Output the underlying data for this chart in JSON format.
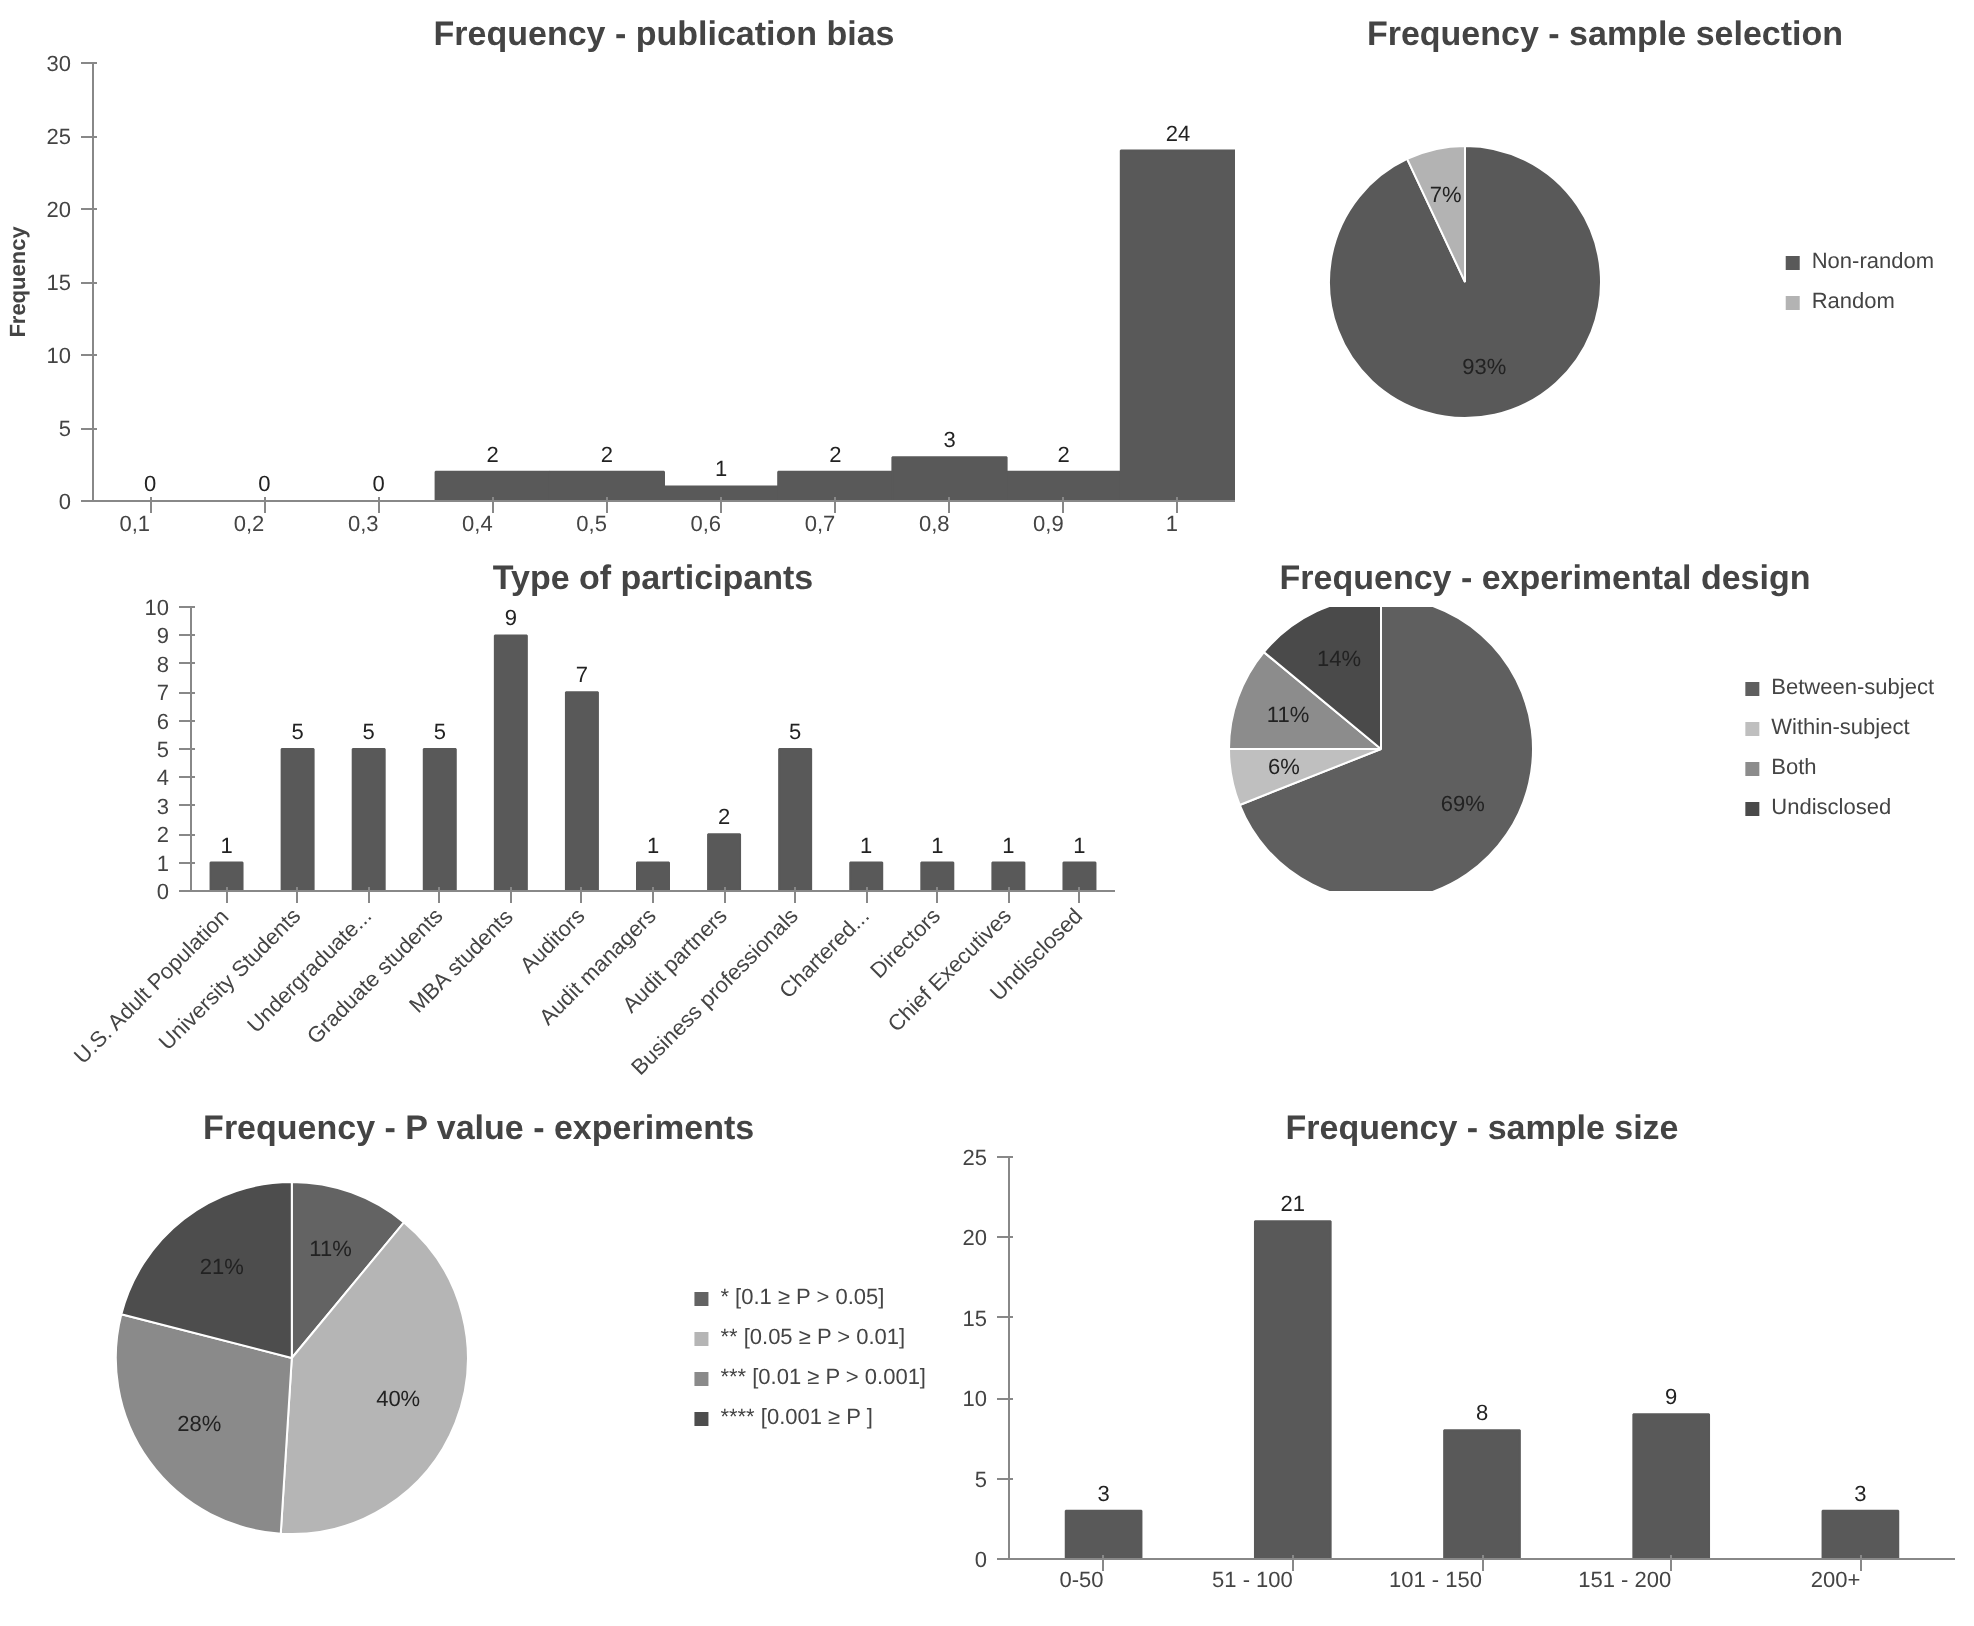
{
  "chart_data": [
    {
      "type": "bar",
      "title": "Frequency - publication bias",
      "ylabel": "Frequency",
      "categories": [
        "0,1",
        "0,2",
        "0,3",
        "0,4",
        "0,5",
        "0,6",
        "0,7",
        "0,8",
        "0,9",
        "1"
      ],
      "values": [
        0,
        0,
        0,
        2,
        2,
        1,
        2,
        3,
        2,
        24
      ],
      "color": "#595959",
      "ylim": [
        0,
        30
      ],
      "yticks": [
        0,
        5,
        10,
        15,
        20,
        25,
        30
      ],
      "data_labels": true,
      "grid": false,
      "legend": false
    },
    {
      "type": "pie",
      "title": "Frequency - sample selection",
      "categories": [
        "Non-random",
        "Random"
      ],
      "values": [
        93,
        7
      ],
      "colors": [
        "#595959",
        "#b3b3b3"
      ],
      "value_labels": [
        "93%",
        "7%"
      ],
      "legend": "right"
    },
    {
      "type": "bar",
      "title": "Type of participants",
      "categories": [
        "U.S. Adult Population",
        "University Students",
        "Undergraduate...",
        "Graduate students",
        "MBA students",
        "Auditors",
        "Audit managers",
        "Audit partners",
        "Business professionals",
        "Chartered...",
        "Directors",
        "Chief Executives",
        "Undisclosed"
      ],
      "values": [
        1,
        5,
        5,
        5,
        9,
        7,
        1,
        2,
        5,
        1,
        1,
        1,
        1
      ],
      "color": "#595959",
      "ylim": [
        0,
        10
      ],
      "yticks": [
        0,
        1,
        2,
        3,
        4,
        5,
        6,
        7,
        8,
        9,
        10
      ],
      "data_labels": true,
      "grid": false,
      "legend": false
    },
    {
      "type": "pie",
      "title": "Frequency - experimental design",
      "categories": [
        "Between-subject",
        "Within-subject",
        "Both",
        "Undisclosed"
      ],
      "values": [
        69,
        6,
        11,
        14
      ],
      "colors": [
        "#5f5f5f",
        "#bfbfbf",
        "#8c8c8c",
        "#4a4a4a"
      ],
      "value_labels": [
        "69%",
        "6%",
        "11%",
        "14%"
      ],
      "legend": "right"
    },
    {
      "type": "pie",
      "title": "Frequency - P value - experiments",
      "categories": [
        "* [0.1 ≥ P > 0.05]",
        "** [0.05 ≥ P > 0.01]",
        "*** [0.01 ≥ P > 0.001]",
        "**** [0.001 ≥ P ]"
      ],
      "values": [
        11,
        40,
        28,
        21
      ],
      "colors": [
        "#636363",
        "#b5b5b5",
        "#8a8a8a",
        "#4d4d4d"
      ],
      "value_labels": [
        "11%",
        "40%",
        "28%",
        "21%"
      ],
      "legend": "right"
    },
    {
      "type": "bar",
      "title": "Frequency - sample size",
      "categories": [
        "0-50",
        "51 - 100",
        "101 - 150",
        "151 - 200",
        "200+"
      ],
      "values": [
        3,
        21,
        8,
        9,
        3
      ],
      "color": "#595959",
      "ylim": [
        0,
        25
      ],
      "yticks": [
        0,
        5,
        10,
        15,
        20,
        25
      ],
      "data_labels": true,
      "grid": false,
      "legend": false
    }
  ]
}
